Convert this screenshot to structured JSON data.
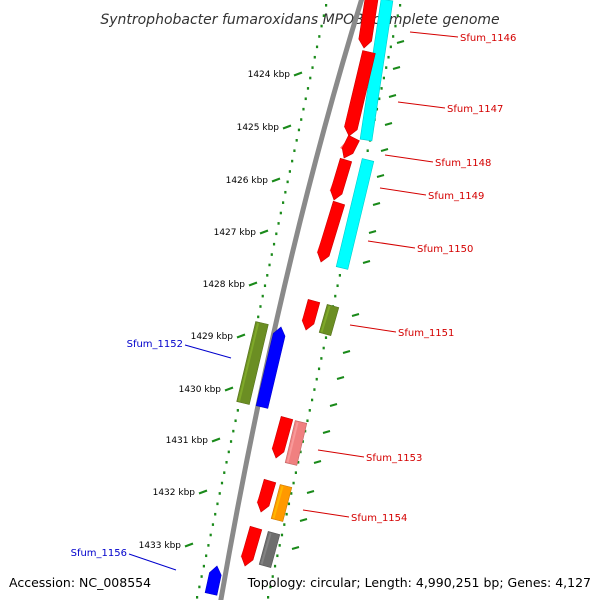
{
  "title": "Syntrophobacter fumaroxidans MPOB, complete genome",
  "footer": {
    "accession": "Accession: NC_008554",
    "topology": "Topology: circular; Length: 4,990,251 bp; Genes: 4,127"
  },
  "scale": {
    "ticks": [
      "1424 kbp",
      "1425 kbp",
      "1426 kbp",
      "1427 kbp",
      "1428 kbp",
      "1429 kbp",
      "1430 kbp",
      "1431 kbp",
      "1432 kbp",
      "1433 kbp"
    ]
  },
  "colors": {
    "backbone": "#8a8a8a",
    "scale": "#1a8a1a",
    "forward_label": "#d40000",
    "reverse_label": "#0000cc",
    "red": "#ff0000",
    "cyan": "#00ffff",
    "olive": "#6b8e23",
    "blue": "#0000ff",
    "pink": "#f08080",
    "orange": "#ff9900",
    "gray": "#6e6e6e"
  },
  "genes": {
    "forward": [
      "Sfum_1146",
      "Sfum_1147",
      "Sfum_1148",
      "Sfum_1149",
      "Sfum_1150",
      "Sfum_1151",
      "Sfum_1153",
      "Sfum_1154"
    ],
    "reverse": [
      "Sfum_1152",
      "Sfum_1156"
    ]
  }
}
